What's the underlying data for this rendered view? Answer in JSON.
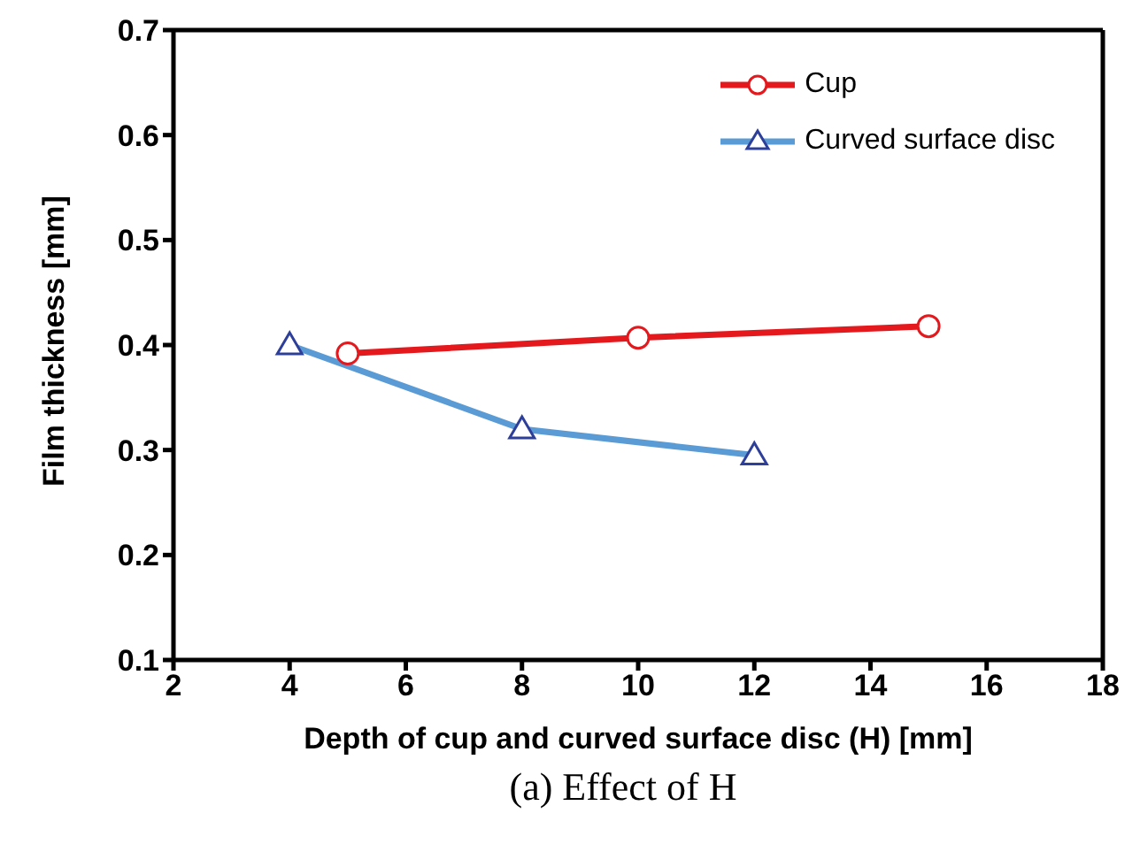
{
  "chart_data": {
    "type": "line",
    "xlabel": "Depth of cup and curved surface disc (H) [mm]",
    "ylabel": "Film thickness [mm]",
    "xlim": [
      2,
      18
    ],
    "xticks": [
      2,
      4,
      6,
      8,
      10,
      12,
      14,
      16,
      18
    ],
    "ylim": [
      0.1,
      0.7
    ],
    "yticks": [
      0.1,
      0.2,
      0.3,
      0.4,
      0.5,
      0.6,
      0.7
    ],
    "grid": false,
    "legend": "top right",
    "line_style": "solid",
    "series": [
      {
        "name": "Cup",
        "color": "#e3191e",
        "marker": "circle",
        "x": [
          5,
          10,
          15
        ],
        "values": [
          0.392,
          0.407,
          0.418
        ]
      },
      {
        "name": "Curved surface disc",
        "color": "#5b9bd5",
        "marker": "triangle",
        "x": [
          4,
          8,
          12
        ],
        "values": [
          0.4,
          0.32,
          0.295
        ]
      }
    ],
    "annotations": [
      "(a) Effect of H"
    ]
  }
}
